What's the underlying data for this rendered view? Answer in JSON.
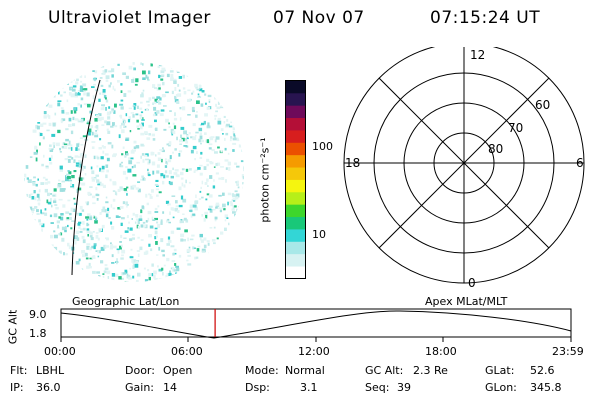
{
  "header": {
    "instrument": "Ultraviolet Imager",
    "date": "07 Nov 07",
    "time": "07:15:24 UT"
  },
  "colorbar": {
    "unit_label": "photon cm⁻²s⁻¹",
    "tick_100": "100",
    "tick_10": "10",
    "colors": [
      "#ffffff",
      "#d7f2f2",
      "#a8e8e8",
      "#33d6d6",
      "#19c879",
      "#3ed62c",
      "#b7ef19",
      "#f5f50f",
      "#f5c80a",
      "#f59b00",
      "#eb5000",
      "#d71e1e",
      "#b40f37",
      "#6e0a5a",
      "#281450",
      "#0a0a28"
    ]
  },
  "polar_plot": {
    "mlt_labels": {
      "top": "12",
      "left": "18",
      "right": "6",
      "bottom": "0"
    },
    "lat_labels": {
      "inner": "80",
      "middle": "70",
      "outer": "60"
    }
  },
  "timeline": {
    "left_label": "Geographic Lat/Lon",
    "right_label": "Apex MLat/MLT",
    "axis_title": "GC Alt",
    "y_max": "9.0",
    "y_min": "1.8",
    "x_ticks": [
      "00:00",
      "06:00",
      "12:00",
      "18:00",
      "23:59"
    ],
    "marker_time": "07:15",
    "marker_color": "#cc0000"
  },
  "status": {
    "flt_label": "Flt:",
    "flt_value": "LBHL",
    "ip_label": "IP:",
    "ip_value": "36.0",
    "door_label": "Door:",
    "door_value": "Open",
    "gain_label": "Gain:",
    "gain_value": "14",
    "mode_label": "Mode:",
    "mode_value": "Normal",
    "dsp_label": "Dsp:",
    "dsp_value": "3.1",
    "gcalt_label": "GC Alt:",
    "gcalt_value": "2.3 Re",
    "seq_label": "Seq:",
    "seq_value": "39",
    "glat_label": "GLat:",
    "glat_value": "52.6",
    "glon_label": "GLon:",
    "glon_value": "345.8"
  }
}
